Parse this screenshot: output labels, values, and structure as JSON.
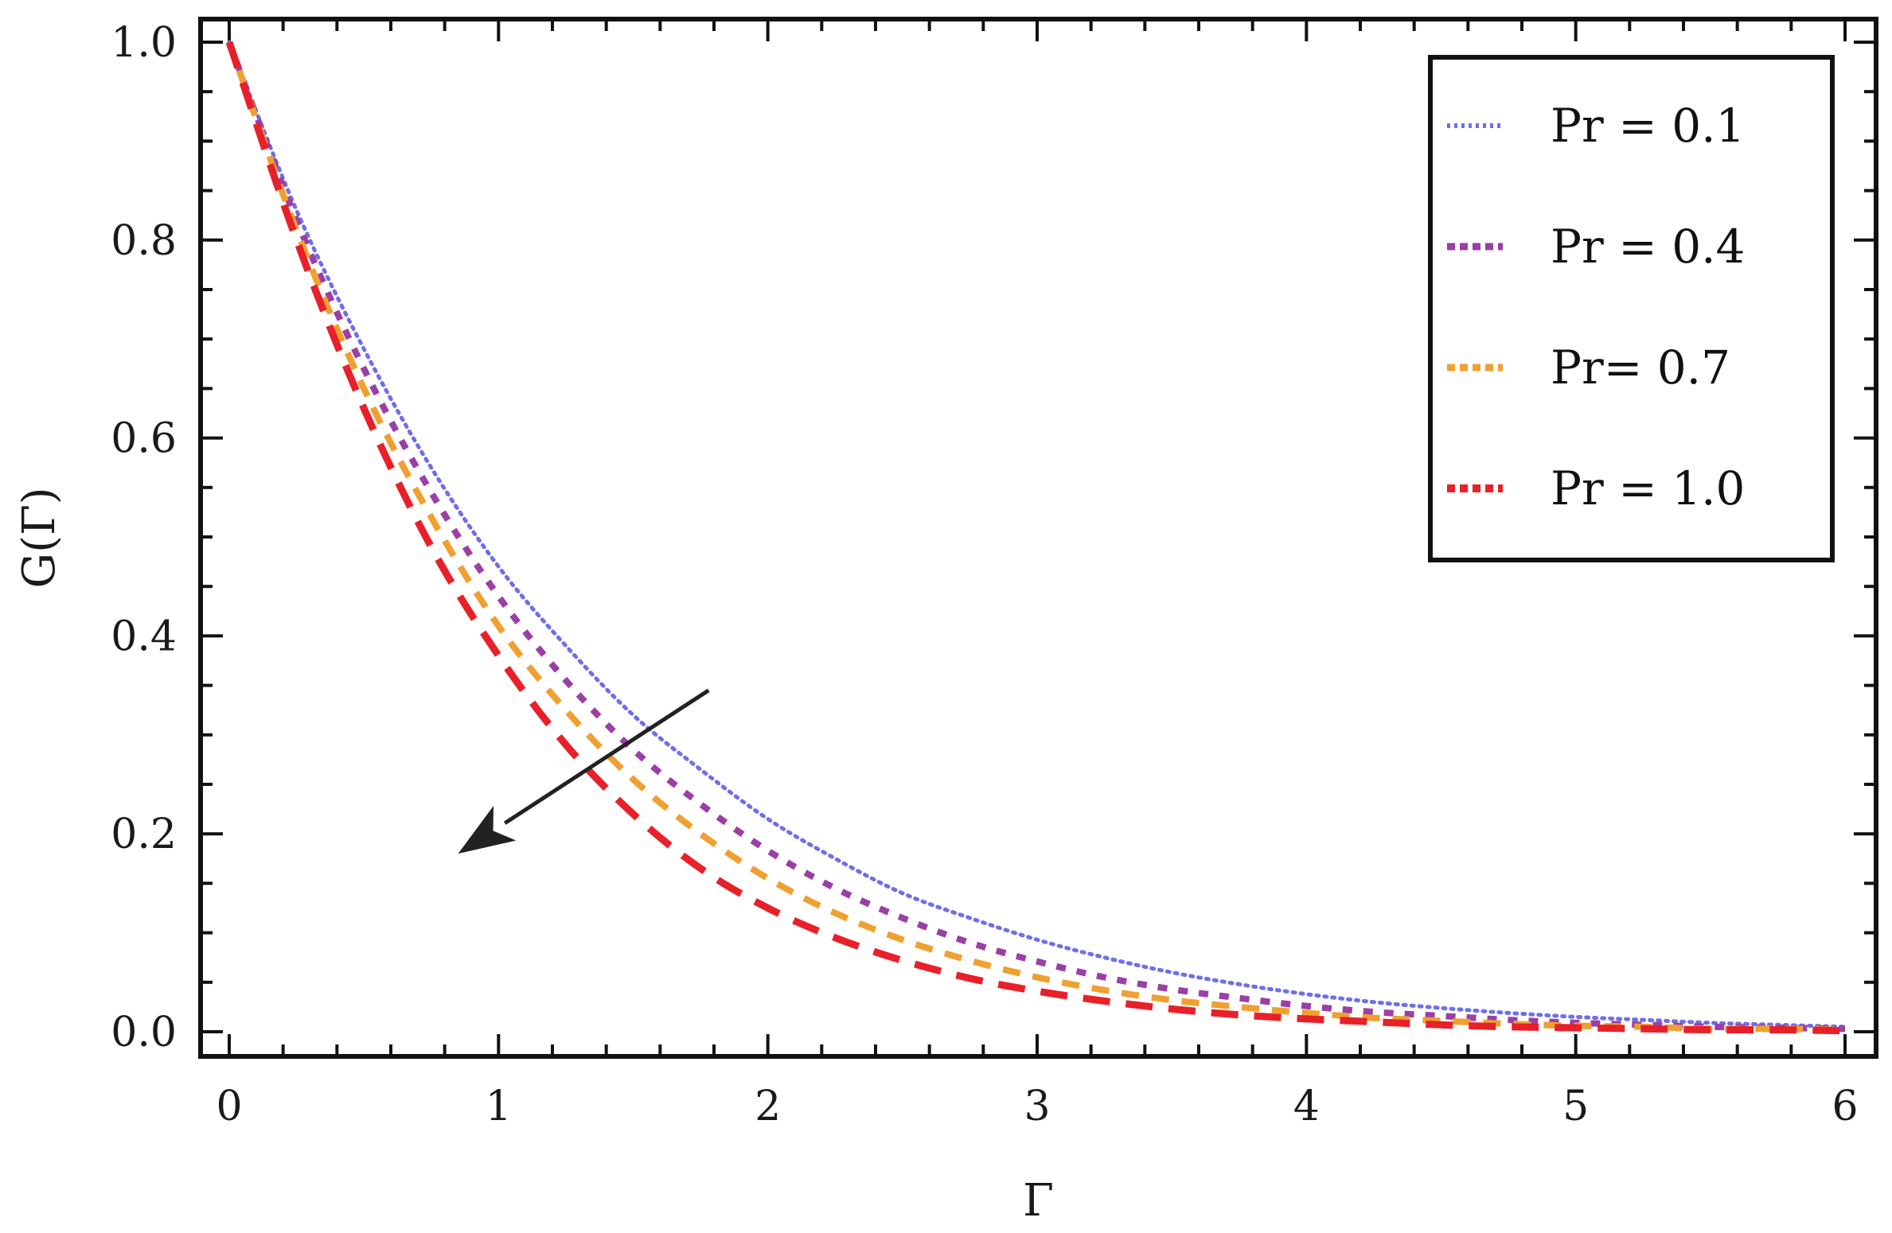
{
  "chart_data": {
    "type": "line",
    "title": "",
    "xlabel": "Γ",
    "ylabel": "G(Γ)",
    "xlim": [
      0,
      6
    ],
    "ylim": [
      0,
      1
    ],
    "xticks": [
      0,
      1,
      2,
      3,
      4,
      5,
      6
    ],
    "xtick_labels": [
      "0",
      "1",
      "2",
      "3",
      "4",
      "5",
      "6"
    ],
    "yticks": [
      0,
      0.2,
      0.4,
      0.6,
      0.8,
      1.0
    ],
    "ytick_labels": [
      "0.0",
      "0.2",
      "0.4",
      "0.6",
      "0.8",
      "1.0"
    ],
    "grid": false,
    "legend_position": "top-right",
    "x": [
      0,
      0.25,
      0.5,
      0.75,
      1,
      1.25,
      1.5,
      1.75,
      2,
      2.25,
      2.5,
      2.75,
      3,
      3.25,
      3.5,
      3.75,
      4,
      4.25,
      4.5,
      4.75,
      5,
      5.25,
      5.5,
      5.75,
      6
    ],
    "series": [
      {
        "name": "Pr = 0.1",
        "color": "#6f6fe8",
        "dash": "dotted",
        "values": [
          1.0,
          0.83,
          0.69,
          0.57,
          0.47,
          0.39,
          0.32,
          0.265,
          0.215,
          0.175,
          0.14,
          0.115,
          0.093,
          0.075,
          0.06,
          0.048,
          0.038,
          0.03,
          0.024,
          0.019,
          0.015,
          0.012,
          0.009,
          0.007,
          0.005
        ]
      },
      {
        "name": "Pr = 0.4",
        "color": "#9b3fa6",
        "dash": "dash-short",
        "values": [
          1.0,
          0.82,
          0.67,
          0.545,
          0.44,
          0.355,
          0.285,
          0.23,
          0.183,
          0.145,
          0.115,
          0.09,
          0.071,
          0.055,
          0.043,
          0.034,
          0.026,
          0.02,
          0.016,
          0.012,
          0.009,
          0.007,
          0.005,
          0.004,
          0.003
        ]
      },
      {
        "name": "Pr= 0.7",
        "color": "#f0a030",
        "dash": "dash-medium",
        "values": [
          1.0,
          0.81,
          0.65,
          0.52,
          0.41,
          0.325,
          0.255,
          0.2,
          0.155,
          0.12,
          0.093,
          0.072,
          0.055,
          0.042,
          0.032,
          0.025,
          0.019,
          0.014,
          0.011,
          0.008,
          0.006,
          0.005,
          0.003,
          0.003,
          0.002
        ]
      },
      {
        "name": "Pr = 1.0",
        "color": "#e8202a",
        "dash": "dash-long",
        "values": [
          1.0,
          0.8,
          0.63,
          0.49,
          0.38,
          0.29,
          0.22,
          0.165,
          0.125,
          0.095,
          0.072,
          0.054,
          0.041,
          0.031,
          0.023,
          0.017,
          0.013,
          0.01,
          0.007,
          0.005,
          0.004,
          0.003,
          0.002,
          0.002,
          0.001
        ]
      }
    ],
    "annotations": [
      {
        "type": "arrow",
        "from": [
          1.78,
          0.345
        ],
        "to": [
          0.85,
          0.18
        ],
        "color": "#222222"
      }
    ]
  }
}
